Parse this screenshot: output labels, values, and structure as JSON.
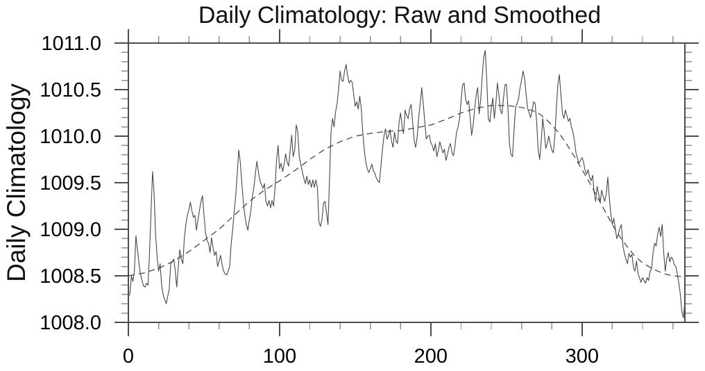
{
  "page": {
    "background": "#ffffff"
  },
  "chart_data": {
    "type": "line",
    "title": "Daily Climatology: Raw and Smoothed",
    "xlabel": "",
    "ylabel": "Daily Climatology",
    "xlim": [
      0,
      368
    ],
    "ylim": [
      1008.0,
      1011.0
    ],
    "grid": false,
    "legend_position": "none",
    "x_axis": {
      "major_tick_values": [
        0,
        100,
        200,
        300
      ],
      "major_tick_labels": [
        "0",
        "100",
        "200",
        "300"
      ],
      "minor_tick_step": 20
    },
    "y_axis": {
      "major_tick_values": [
        1008.0,
        1008.5,
        1009.0,
        1009.5,
        1010.0,
        1010.5,
        1011.0
      ],
      "major_tick_labels": [
        "1008.0",
        "1008.5",
        "1009.0",
        "1009.5",
        "1010.0",
        "1010.5",
        "1011.0"
      ],
      "minor_tick_step": 0.1
    },
    "styles": {
      "raw_color": "#474747",
      "smoothed_color": "#474747",
      "axis_color": "#4d4d4d",
      "minor_tick_color": "#8f8f8f",
      "label_color": "#000000",
      "smoothed_dash": "9 6"
    },
    "series": [
      {
        "name": "Raw",
        "style": "solid",
        "x_start": 0,
        "x_step": 1,
        "values": [
          1008.28,
          1008.3,
          1008.5,
          1008.44,
          1008.55,
          1008.93,
          1008.78,
          1008.63,
          1008.52,
          1008.45,
          1008.39,
          1008.38,
          1008.42,
          1008.4,
          1008.75,
          1009.2,
          1009.62,
          1009.4,
          1008.95,
          1008.7,
          1008.55,
          1008.63,
          1008.4,
          1008.3,
          1008.25,
          1008.2,
          1008.28,
          1008.35,
          1008.63,
          1008.65,
          1008.68,
          1008.55,
          1008.38,
          1008.6,
          1008.78,
          1008.68,
          1008.63,
          1008.9,
          1009.05,
          1009.15,
          1009.21,
          1009.29,
          1009.2,
          1009.13,
          1009.15,
          1008.99,
          1009.1,
          1009.2,
          1009.3,
          1009.36,
          1009.15,
          1008.97,
          1008.88,
          1008.85,
          1008.75,
          1008.91,
          1008.8,
          1008.72,
          1008.76,
          1008.6,
          1008.66,
          1008.72,
          1008.62,
          1008.55,
          1008.52,
          1008.51,
          1008.55,
          1008.6,
          1008.85,
          1009.0,
          1009.2,
          1009.36,
          1009.6,
          1009.85,
          1009.72,
          1009.5,
          1009.3,
          1009.15,
          1009.05,
          1008.99,
          1009.1,
          1009.2,
          1009.35,
          1009.45,
          1009.6,
          1009.73,
          1009.62,
          1009.52,
          1009.48,
          1009.44,
          1009.49,
          1009.3,
          1009.25,
          1009.31,
          1009.23,
          1009.31,
          1009.25,
          1009.45,
          1009.75,
          1009.9,
          1009.65,
          1009.71,
          1009.62,
          1009.7,
          1009.81,
          1009.72,
          1009.68,
          1009.85,
          1010.01,
          1009.78,
          1009.85,
          1010.12,
          1010.05,
          1009.78,
          1009.7,
          1009.62,
          1009.55,
          1009.49,
          1009.57,
          1009.48,
          1009.53,
          1009.45,
          1009.53,
          1009.45,
          1009.53,
          1009.45,
          1009.08,
          1009.03,
          1009.1,
          1009.28,
          1009.3,
          1009.18,
          1009.05,
          1009.55,
          1010.04,
          1010.19,
          1010.1,
          1010.26,
          1010.35,
          1010.5,
          1010.7,
          1010.6,
          1010.59,
          1010.7,
          1010.77,
          1010.65,
          1010.57,
          1010.6,
          1010.58,
          1010.45,
          1010.32,
          1010.37,
          1010.29,
          1010.43,
          1010.3,
          1010.04,
          1009.85,
          1009.72,
          1009.65,
          1009.61,
          1009.65,
          1009.7,
          1009.63,
          1009.6,
          1009.55,
          1009.52,
          1009.5,
          1009.68,
          1009.85,
          1010.0,
          1010.08,
          1009.97,
          1010.0,
          1010.07,
          1009.95,
          1009.88,
          1010.04,
          1009.95,
          1009.92,
          1010.15,
          1010.25,
          1010.1,
          1010.03,
          1010.28,
          1010.22,
          1010.19,
          1010.3,
          1010.34,
          1010.15,
          1009.95,
          1009.88,
          1010.0,
          1010.2,
          1010.35,
          1010.52,
          1010.35,
          1010.15,
          1009.97,
          1010.0,
          1010.01,
          1009.93,
          1009.9,
          1009.84,
          1009.92,
          1009.78,
          1009.85,
          1009.94,
          1009.88,
          1009.82,
          1009.86,
          1009.74,
          1009.8,
          1009.88,
          1009.92,
          1009.82,
          1009.79,
          1009.9,
          1010.04,
          1010.1,
          1010.19,
          1010.38,
          1010.55,
          1010.57,
          1010.4,
          1010.34,
          1010.38,
          1010.2,
          1010.01,
          1010.12,
          1010.3,
          1010.45,
          1010.52,
          1010.24,
          1010.4,
          1010.65,
          1010.85,
          1010.92,
          1010.6,
          1010.19,
          1010.15,
          1010.3,
          1010.41,
          1010.19,
          1010.35,
          1010.57,
          1010.45,
          1010.28,
          1010.24,
          1010.4,
          1010.55,
          1010.56,
          1010.3,
          1009.92,
          1009.8,
          1009.78,
          1010.05,
          1010.3,
          1010.35,
          1010.4,
          1010.52,
          1010.6,
          1010.7,
          1010.62,
          1010.45,
          1010.3,
          1010.25,
          1010.2,
          1010.28,
          1010.37,
          1010.35,
          1010.15,
          1009.85,
          1009.75,
          1009.95,
          1010.19,
          1010.05,
          1009.87,
          1009.92,
          1010.0,
          1009.92,
          1009.85,
          1009.82,
          1010.0,
          1010.3,
          1010.55,
          1010.66,
          1010.45,
          1010.25,
          1010.19,
          1010.28,
          1010.22,
          1010.16,
          1010.19,
          1010.1,
          1010.04,
          1009.95,
          1009.82,
          1009.76,
          1009.71,
          1009.74,
          1009.77,
          1009.72,
          1009.63,
          1009.59,
          1009.64,
          1009.56,
          1009.52,
          1009.58,
          1009.4,
          1009.3,
          1009.46,
          1009.38,
          1009.29,
          1009.42,
          1009.35,
          1009.3,
          1009.38,
          1009.56,
          1009.35,
          1009.17,
          1009.05,
          1009.12,
          1009.0,
          1008.9,
          1008.95,
          1009.01,
          1009.05,
          1008.83,
          1008.74,
          1008.68,
          1008.63,
          1008.74,
          1008.7,
          1008.73,
          1008.59,
          1008.55,
          1008.66,
          1008.53,
          1008.48,
          1008.43,
          1008.48,
          1008.45,
          1008.42,
          1008.48,
          1008.45,
          1008.55,
          1008.58,
          1008.75,
          1008.85,
          1008.82,
          1008.95,
          1009.02,
          1008.92,
          1009.05,
          1008.75,
          1008.55,
          1008.68,
          1008.75,
          1008.65,
          1008.7,
          1008.68,
          1008.62,
          1008.6,
          1008.52,
          1008.42,
          1008.3,
          1008.12,
          1008.05,
          1008.22
        ]
      },
      {
        "name": "Smoothed",
        "style": "dashed",
        "points": [
          [
            0,
            1008.5
          ],
          [
            10,
            1008.53
          ],
          [
            20,
            1008.58
          ],
          [
            30,
            1008.66
          ],
          [
            40,
            1008.76
          ],
          [
            50,
            1008.88
          ],
          [
            60,
            1009.0
          ],
          [
            70,
            1009.15
          ],
          [
            80,
            1009.3
          ],
          [
            90,
            1009.42
          ],
          [
            100,
            1009.52
          ],
          [
            110,
            1009.63
          ],
          [
            120,
            1009.75
          ],
          [
            130,
            1009.86
          ],
          [
            140,
            1009.94
          ],
          [
            150,
            1010.0
          ],
          [
            160,
            1010.03
          ],
          [
            170,
            1010.05
          ],
          [
            180,
            1010.06
          ],
          [
            190,
            1010.09
          ],
          [
            200,
            1010.12
          ],
          [
            210,
            1010.18
          ],
          [
            220,
            1010.25
          ],
          [
            230,
            1010.3
          ],
          [
            240,
            1010.33
          ],
          [
            250,
            1010.33
          ],
          [
            260,
            1010.31
          ],
          [
            270,
            1010.26
          ],
          [
            275,
            1010.2
          ],
          [
            280,
            1010.12
          ],
          [
            285,
            1010.03
          ],
          [
            290,
            1009.91
          ],
          [
            295,
            1009.78
          ],
          [
            300,
            1009.64
          ],
          [
            305,
            1009.5
          ],
          [
            310,
            1009.35
          ],
          [
            315,
            1009.2
          ],
          [
            320,
            1009.05
          ],
          [
            325,
            1008.92
          ],
          [
            330,
            1008.81
          ],
          [
            335,
            1008.71
          ],
          [
            340,
            1008.64
          ],
          [
            345,
            1008.59
          ],
          [
            350,
            1008.55
          ],
          [
            355,
            1008.52
          ],
          [
            360,
            1008.5
          ],
          [
            368,
            1008.49
          ]
        ]
      }
    ]
  }
}
